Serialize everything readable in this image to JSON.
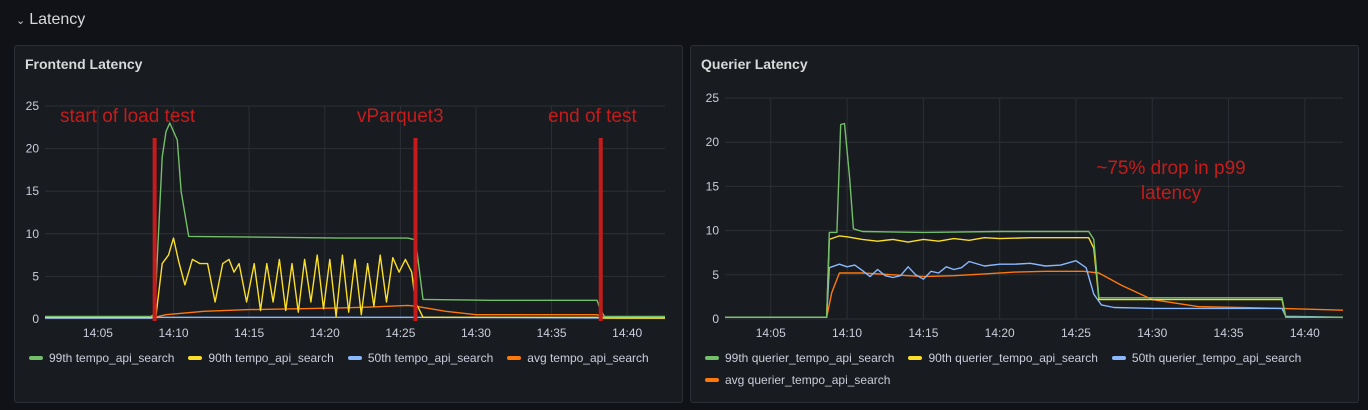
{
  "row": {
    "title": "Latency",
    "chevron": "chevron-down-icon"
  },
  "colors": {
    "green": "#73bf69",
    "yellow": "#fade2a",
    "blue": "#8ab8ff",
    "orange": "#ff780a",
    "annotation": "#c41c1c",
    "grid": "#2c2f35",
    "axis_text": "#ccccdc"
  },
  "chart_data": [
    {
      "type": "line",
      "title": "Frontend Latency",
      "x_ticks": [
        "14:05",
        "14:10",
        "14:15",
        "14:20",
        "14:25",
        "14:30",
        "14:35",
        "14:40"
      ],
      "y_ticks": [
        0,
        5,
        10,
        15,
        20,
        25
      ],
      "xlim": [
        "14:01:30",
        "14:42:30"
      ],
      "ylim": [
        0,
        25
      ],
      "grid": true,
      "legend_placement": "bottom",
      "annotations": [
        {
          "text": "start of load test",
          "x": "14:08:45",
          "color": "#c41c1c"
        },
        {
          "text": "vParquet3",
          "x": "14:26:00",
          "color": "#c41c1c"
        },
        {
          "text": "end of test",
          "x": "14:38:15",
          "color": "#c41c1c"
        }
      ],
      "series": [
        {
          "name": "99th tempo_api_search",
          "color": "#73bf69",
          "x": [
            "14:01:30",
            "14:08:30",
            "14:08:45",
            "14:09:15",
            "14:09:30",
            "14:09:45",
            "14:10:15",
            "14:10:30",
            "14:11:00",
            "14:16:00",
            "14:21:00",
            "14:25:30",
            "14:26:00",
            "14:26:30",
            "14:31:00",
            "14:38:00",
            "14:38:15",
            "14:38:30",
            "14:42:30"
          ],
          "values": [
            0.3,
            0.3,
            0.6,
            19,
            22,
            23,
            21,
            15,
            9.7,
            9.6,
            9.5,
            9.5,
            9.3,
            2.3,
            2.2,
            2.2,
            1.0,
            0.3,
            0.3
          ]
        },
        {
          "name": "90th tempo_api_search",
          "color": "#fade2a",
          "x": [
            "14:01:30",
            "14:08:30",
            "14:08:50",
            "14:09:15",
            "14:09:40",
            "14:10:00",
            "14:10:20",
            "14:10:45",
            "14:11:15",
            "14:11:45",
            "14:12:15",
            "14:12:45",
            "14:13:15",
            "14:13:40",
            "14:14:00",
            "14:14:20",
            "14:14:50",
            "14:15:20",
            "14:15:45",
            "14:16:10",
            "14:16:35",
            "14:17:00",
            "14:17:25",
            "14:17:50",
            "14:18:15",
            "14:18:40",
            "14:19:05",
            "14:19:30",
            "14:19:55",
            "14:20:20",
            "14:20:45",
            "14:21:10",
            "14:21:35",
            "14:22:00",
            "14:22:25",
            "14:22:50",
            "14:23:15",
            "14:23:40",
            "14:24:05",
            "14:24:30",
            "14:24:55",
            "14:25:20",
            "14:25:45",
            "14:26:00",
            "14:26:30",
            "14:38:00",
            "14:38:30",
            "14:42:30"
          ],
          "values": [
            0.2,
            0.2,
            0.3,
            6.5,
            7.5,
            9.5,
            6.8,
            4.0,
            7.0,
            6.5,
            6.5,
            2.0,
            6.5,
            7.0,
            5.5,
            6.5,
            2.0,
            6.5,
            1.0,
            6.5,
            2.0,
            7.0,
            1.0,
            6.5,
            0.8,
            7.0,
            2.0,
            7.5,
            1.2,
            7.0,
            0.3,
            7.5,
            0.8,
            7.0,
            0.5,
            6.5,
            1.5,
            7.5,
            2.0,
            7.2,
            5.5,
            7.0,
            5.5,
            2.0,
            0.2,
            0.2,
            0.1,
            0.1
          ]
        },
        {
          "name": "50th tempo_api_search",
          "color": "#8ab8ff",
          "x": [
            "14:01:30",
            "14:08:30",
            "14:09:00",
            "14:26:00",
            "14:42:30"
          ],
          "values": [
            0.1,
            0.1,
            0.2,
            0.2,
            0.1
          ]
        },
        {
          "name": "avg tempo_api_search",
          "color": "#ff780a",
          "x": [
            "14:01:30",
            "14:08:30",
            "14:09:30",
            "14:12:00",
            "14:15:00",
            "14:18:00",
            "14:21:00",
            "14:23:00",
            "14:25:30",
            "14:26:00",
            "14:28:00",
            "14:30:00",
            "14:38:00",
            "14:38:30",
            "14:42:30"
          ],
          "values": [
            0.1,
            0.1,
            0.5,
            0.9,
            1.1,
            1.2,
            1.3,
            1.4,
            1.6,
            1.5,
            0.9,
            0.5,
            0.5,
            0.2,
            0.2
          ]
        }
      ]
    },
    {
      "type": "line",
      "title": "Querier Latency",
      "x_ticks": [
        "14:05",
        "14:10",
        "14:15",
        "14:20",
        "14:25",
        "14:30",
        "14:35",
        "14:40"
      ],
      "y_ticks": [
        0,
        5,
        10,
        15,
        20,
        25
      ],
      "xlim": [
        "14:02:00",
        "14:42:30"
      ],
      "ylim": [
        0,
        25
      ],
      "grid": true,
      "legend_placement": "bottom",
      "annotations": [
        {
          "text": "~75% drop in p99",
          "color": "#c41c1c"
        },
        {
          "text": "latency",
          "color": "#c41c1c"
        }
      ],
      "series": [
        {
          "name": "99th querier_tempo_api_search",
          "color": "#73bf69",
          "x": [
            "14:02:00",
            "14:08:40",
            "14:08:50",
            "14:09:20",
            "14:09:35",
            "14:09:50",
            "14:10:10",
            "14:10:25",
            "14:11:00",
            "14:15:00",
            "14:20:00",
            "14:25:50",
            "14:26:10",
            "14:26:30",
            "14:38:30",
            "14:38:45",
            "14:42:30"
          ],
          "values": [
            0.2,
            0.2,
            9.8,
            9.8,
            22.0,
            22.1,
            16,
            10.2,
            9.9,
            9.8,
            9.9,
            9.9,
            9.0,
            2.4,
            2.4,
            0.2,
            0.2
          ]
        },
        {
          "name": "90th querier_tempo_api_search",
          "color": "#fade2a",
          "x": [
            "14:02:00",
            "14:08:40",
            "14:08:50",
            "14:09:30",
            "14:10:00",
            "14:11:00",
            "14:12:00",
            "14:13:00",
            "14:14:00",
            "14:15:00",
            "14:16:00",
            "14:17:00",
            "14:18:00",
            "14:19:00",
            "14:20:00",
            "14:22:00",
            "14:25:50",
            "14:26:10",
            "14:26:30",
            "14:38:30",
            "14:38:45",
            "14:42:30"
          ],
          "values": [
            0.2,
            0.2,
            9.0,
            9.4,
            9.3,
            9.0,
            8.8,
            9.0,
            8.7,
            9.0,
            8.8,
            9.1,
            8.9,
            9.2,
            9.1,
            9.2,
            9.2,
            8.0,
            2.2,
            2.2,
            0.2,
            0.2
          ]
        },
        {
          "name": "50th querier_tempo_api_search",
          "color": "#8ab8ff",
          "x": [
            "14:02:00",
            "14:08:40",
            "14:08:50",
            "14:09:30",
            "14:10:00",
            "14:10:30",
            "14:11:00",
            "14:11:30",
            "14:12:00",
            "14:12:30",
            "14:13:00",
            "14:13:30",
            "14:14:00",
            "14:14:30",
            "14:15:00",
            "14:15:30",
            "14:16:00",
            "14:16:30",
            "14:17:00",
            "14:17:30",
            "14:18:00",
            "14:19:00",
            "14:20:00",
            "14:21:00",
            "14:22:00",
            "14:23:00",
            "14:24:00",
            "14:25:00",
            "14:25:40",
            "14:26:10",
            "14:26:40",
            "14:27:30",
            "14:30:00",
            "14:38:30",
            "14:38:45",
            "14:42:30"
          ],
          "values": [
            0.2,
            0.2,
            5.8,
            6.2,
            5.9,
            6.1,
            5.5,
            4.8,
            5.6,
            4.9,
            4.7,
            4.9,
            5.9,
            5.0,
            4.5,
            5.4,
            5.2,
            5.9,
            5.6,
            5.8,
            6.5,
            6.0,
            6.2,
            6.2,
            6.3,
            6.0,
            6.1,
            6.6,
            5.8,
            2.8,
            1.6,
            1.3,
            1.2,
            1.2,
            0.3,
            0.2
          ]
        },
        {
          "name": "avg querier_tempo_api_search",
          "color": "#ff780a",
          "x": [
            "14:02:00",
            "14:08:40",
            "14:09:00",
            "14:09:30",
            "14:11:00",
            "14:13:00",
            "14:15:00",
            "14:17:00",
            "14:19:00",
            "14:21:00",
            "14:23:00",
            "14:25:30",
            "14:26:30",
            "14:28:00",
            "14:30:00",
            "14:33:00",
            "14:38:30",
            "14:42:30"
          ],
          "values": [
            0.2,
            0.2,
            3.0,
            5.2,
            5.2,
            5.0,
            4.8,
            4.9,
            5.1,
            5.3,
            5.4,
            5.4,
            5.2,
            3.8,
            2.2,
            1.4,
            1.2,
            1.0
          ]
        }
      ]
    }
  ]
}
